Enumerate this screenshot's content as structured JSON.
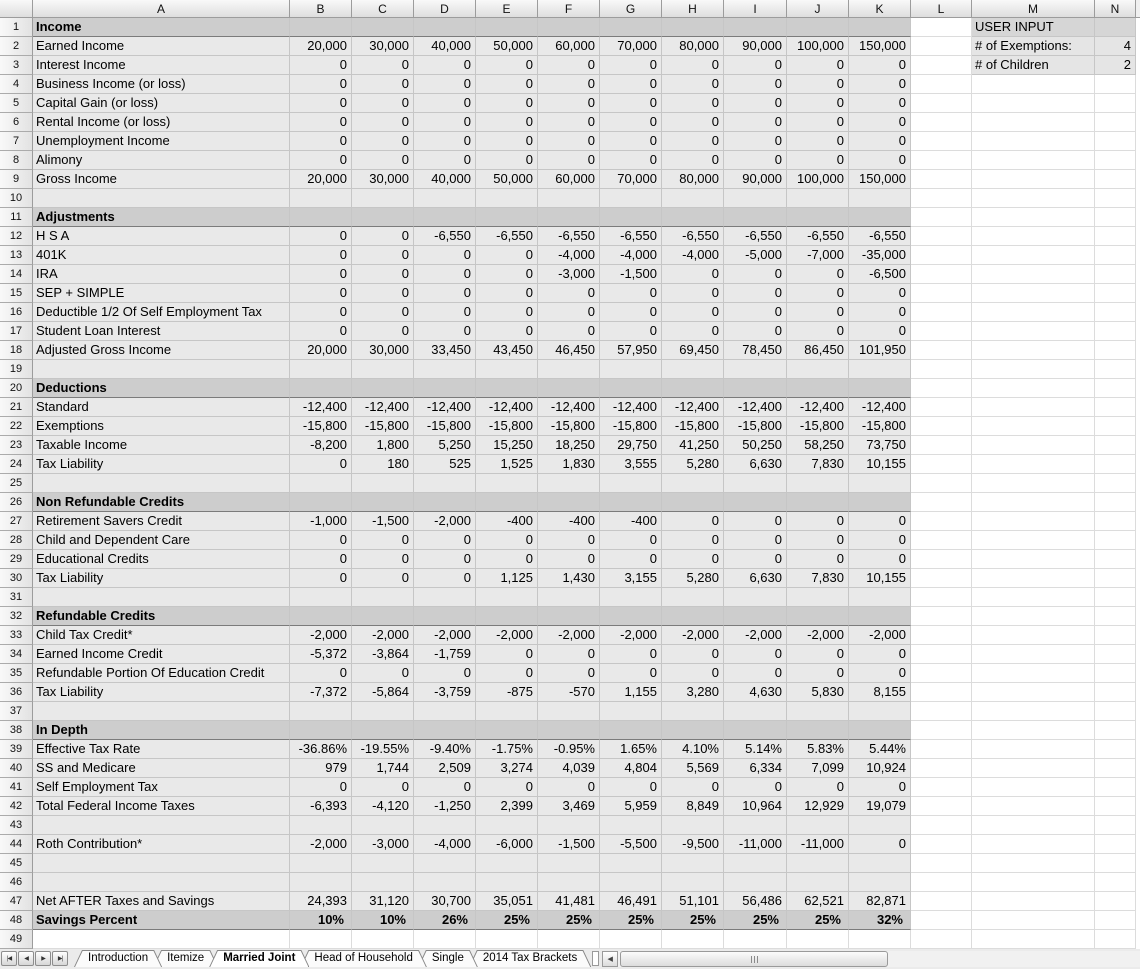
{
  "sheet": {
    "column_headers": [
      "A",
      "B",
      "C",
      "D",
      "E",
      "F",
      "G",
      "H",
      "I",
      "J",
      "K",
      "L",
      "M",
      "N"
    ],
    "rows": [
      {
        "row": 1,
        "type": "section",
        "label": "Income"
      },
      {
        "row": 2,
        "type": "data",
        "label": "Earned Income",
        "values": [
          "20,000",
          "30,000",
          "40,000",
          "50,000",
          "60,000",
          "70,000",
          "80,000",
          "90,000",
          "100,000",
          "150,000"
        ]
      },
      {
        "row": 3,
        "type": "data",
        "label": "Interest Income",
        "values": [
          "0",
          "0",
          "0",
          "0",
          "0",
          "0",
          "0",
          "0",
          "0",
          "0"
        ]
      },
      {
        "row": 4,
        "type": "data",
        "label": "Business Income (or loss)",
        "values": [
          "0",
          "0",
          "0",
          "0",
          "0",
          "0",
          "0",
          "0",
          "0",
          "0"
        ]
      },
      {
        "row": 5,
        "type": "data",
        "label": "Capital Gain (or loss)",
        "values": [
          "0",
          "0",
          "0",
          "0",
          "0",
          "0",
          "0",
          "0",
          "0",
          "0"
        ]
      },
      {
        "row": 6,
        "type": "data",
        "label": "Rental Income (or loss)",
        "values": [
          "0",
          "0",
          "0",
          "0",
          "0",
          "0",
          "0",
          "0",
          "0",
          "0"
        ]
      },
      {
        "row": 7,
        "type": "data",
        "label": "Unemployment Income",
        "values": [
          "0",
          "0",
          "0",
          "0",
          "0",
          "0",
          "0",
          "0",
          "0",
          "0"
        ]
      },
      {
        "row": 8,
        "type": "data",
        "label": "Alimony",
        "values": [
          "0",
          "0",
          "0",
          "0",
          "0",
          "0",
          "0",
          "0",
          "0",
          "0"
        ]
      },
      {
        "row": 9,
        "type": "data",
        "label": "Gross Income",
        "values": [
          "20,000",
          "30,000",
          "40,000",
          "50,000",
          "60,000",
          "70,000",
          "80,000",
          "90,000",
          "100,000",
          "150,000"
        ]
      },
      {
        "row": 10,
        "type": "blank"
      },
      {
        "row": 11,
        "type": "section",
        "label": "Adjustments"
      },
      {
        "row": 12,
        "type": "data",
        "label": "H S A",
        "values": [
          "0",
          "0",
          "-6,550",
          "-6,550",
          "-6,550",
          "-6,550",
          "-6,550",
          "-6,550",
          "-6,550",
          "-6,550"
        ]
      },
      {
        "row": 13,
        "type": "data",
        "label": "401K",
        "values": [
          "0",
          "0",
          "0",
          "0",
          "-4,000",
          "-4,000",
          "-4,000",
          "-5,000",
          "-7,000",
          "-35,000"
        ]
      },
      {
        "row": 14,
        "type": "data",
        "label": "IRA",
        "values": [
          "0",
          "0",
          "0",
          "0",
          "-3,000",
          "-1,500",
          "0",
          "0",
          "0",
          "-6,500"
        ]
      },
      {
        "row": 15,
        "type": "data",
        "label": "SEP + SIMPLE",
        "values": [
          "0",
          "0",
          "0",
          "0",
          "0",
          "0",
          "0",
          "0",
          "0",
          "0"
        ]
      },
      {
        "row": 16,
        "type": "data",
        "label": "Deductible 1/2 Of Self Employment Tax",
        "values": [
          "0",
          "0",
          "0",
          "0",
          "0",
          "0",
          "0",
          "0",
          "0",
          "0"
        ]
      },
      {
        "row": 17,
        "type": "data",
        "label": "Student Loan Interest",
        "values": [
          "0",
          "0",
          "0",
          "0",
          "0",
          "0",
          "0",
          "0",
          "0",
          "0"
        ]
      },
      {
        "row": 18,
        "type": "data",
        "label": "Adjusted Gross Income",
        "values": [
          "20,000",
          "30,000",
          "33,450",
          "43,450",
          "46,450",
          "57,950",
          "69,450",
          "78,450",
          "86,450",
          "101,950"
        ]
      },
      {
        "row": 19,
        "type": "blank"
      },
      {
        "row": 20,
        "type": "section",
        "label": "Deductions"
      },
      {
        "row": 21,
        "type": "data",
        "label": "Standard",
        "values": [
          "-12,400",
          "-12,400",
          "-12,400",
          "-12,400",
          "-12,400",
          "-12,400",
          "-12,400",
          "-12,400",
          "-12,400",
          "-12,400"
        ]
      },
      {
        "row": 22,
        "type": "data",
        "label": "Exemptions",
        "values": [
          "-15,800",
          "-15,800",
          "-15,800",
          "-15,800",
          "-15,800",
          "-15,800",
          "-15,800",
          "-15,800",
          "-15,800",
          "-15,800"
        ]
      },
      {
        "row": 23,
        "type": "data",
        "label": "Taxable Income",
        "values": [
          "-8,200",
          "1,800",
          "5,250",
          "15,250",
          "18,250",
          "29,750",
          "41,250",
          "50,250",
          "58,250",
          "73,750"
        ]
      },
      {
        "row": 24,
        "type": "data",
        "label": "Tax Liability",
        "values": [
          "0",
          "180",
          "525",
          "1,525",
          "1,830",
          "3,555",
          "5,280",
          "6,630",
          "7,830",
          "10,155"
        ]
      },
      {
        "row": 25,
        "type": "blank"
      },
      {
        "row": 26,
        "type": "section",
        "label": "Non Refundable Credits"
      },
      {
        "row": 27,
        "type": "data",
        "label": "Retirement Savers Credit",
        "values": [
          "-1,000",
          "-1,500",
          "-2,000",
          "-400",
          "-400",
          "-400",
          "0",
          "0",
          "0",
          "0"
        ]
      },
      {
        "row": 28,
        "type": "data",
        "label": "Child and Dependent Care",
        "values": [
          "0",
          "0",
          "0",
          "0",
          "0",
          "0",
          "0",
          "0",
          "0",
          "0"
        ]
      },
      {
        "row": 29,
        "type": "data",
        "label": "Educational Credits",
        "values": [
          "0",
          "0",
          "0",
          "0",
          "0",
          "0",
          "0",
          "0",
          "0",
          "0"
        ]
      },
      {
        "row": 30,
        "type": "data",
        "label": "Tax Liability",
        "values": [
          "0",
          "0",
          "0",
          "1,125",
          "1,430",
          "3,155",
          "5,280",
          "6,630",
          "7,830",
          "10,155"
        ]
      },
      {
        "row": 31,
        "type": "blank"
      },
      {
        "row": 32,
        "type": "section",
        "label": "Refundable Credits"
      },
      {
        "row": 33,
        "type": "data",
        "label": "Child Tax Credit*",
        "values": [
          "-2,000",
          "-2,000",
          "-2,000",
          "-2,000",
          "-2,000",
          "-2,000",
          "-2,000",
          "-2,000",
          "-2,000",
          "-2,000"
        ]
      },
      {
        "row": 34,
        "type": "data",
        "label": "Earned Income Credit",
        "values": [
          "-5,372",
          "-3,864",
          "-1,759",
          "0",
          "0",
          "0",
          "0",
          "0",
          "0",
          "0"
        ]
      },
      {
        "row": 35,
        "type": "data",
        "label": "Refundable Portion Of Education Credit",
        "values": [
          "0",
          "0",
          "0",
          "0",
          "0",
          "0",
          "0",
          "0",
          "0",
          "0"
        ]
      },
      {
        "row": 36,
        "type": "data",
        "label": "Tax Liability",
        "values": [
          "-7,372",
          "-5,864",
          "-3,759",
          "-875",
          "-570",
          "1,155",
          "3,280",
          "4,630",
          "5,830",
          "8,155"
        ]
      },
      {
        "row": 37,
        "type": "blank"
      },
      {
        "row": 38,
        "type": "section",
        "label": "In Depth"
      },
      {
        "row": 39,
        "type": "data",
        "label": "Effective Tax Rate",
        "values": [
          "-36.86%",
          "-19.55%",
          "-9.40%",
          "-1.75%",
          "-0.95%",
          "1.65%",
          "4.10%",
          "5.14%",
          "5.83%",
          "5.44%"
        ]
      },
      {
        "row": 40,
        "type": "data",
        "label": "SS and Medicare",
        "values": [
          "979",
          "1,744",
          "2,509",
          "3,274",
          "4,039",
          "4,804",
          "5,569",
          "6,334",
          "7,099",
          "10,924"
        ]
      },
      {
        "row": 41,
        "type": "data",
        "label": "Self Employment Tax",
        "values": [
          "0",
          "0",
          "0",
          "0",
          "0",
          "0",
          "0",
          "0",
          "0",
          "0"
        ]
      },
      {
        "row": 42,
        "type": "data",
        "label": "Total Federal Income Taxes",
        "values": [
          "-6,393",
          "-4,120",
          "-1,250",
          "2,399",
          "3,469",
          "5,959",
          "8,849",
          "10,964",
          "12,929",
          "19,079"
        ]
      },
      {
        "row": 43,
        "type": "blank"
      },
      {
        "row": 44,
        "type": "data",
        "label": "Roth Contribution*",
        "values": [
          "-2,000",
          "-3,000",
          "-4,000",
          "-6,000",
          "-1,500",
          "-5,500",
          "-9,500",
          "-11,000",
          "-11,000",
          "0"
        ]
      },
      {
        "row": 45,
        "type": "blank"
      },
      {
        "row": 46,
        "type": "blank"
      },
      {
        "row": 47,
        "type": "data",
        "label": "Net AFTER Taxes and Savings",
        "values": [
          "24,393",
          "31,120",
          "30,700",
          "35,051",
          "41,481",
          "46,491",
          "51,101",
          "56,486",
          "62,521",
          "82,871"
        ]
      },
      {
        "row": 48,
        "type": "total",
        "label": "Savings Percent",
        "values": [
          "10%",
          "10%",
          "26%",
          "25%",
          "25%",
          "25%",
          "25%",
          "25%",
          "25%",
          "32%"
        ]
      },
      {
        "row": 49,
        "type": "outside"
      }
    ],
    "user_input": {
      "title": "USER INPUT",
      "fields": [
        {
          "label": "# of Exemptions:",
          "value": "4"
        },
        {
          "label": "# of Children",
          "value": "2"
        }
      ]
    }
  },
  "tabbar": {
    "nav": [
      {
        "name": "first-sheet",
        "glyph": "|◀"
      },
      {
        "name": "previous-sheet",
        "glyph": "◀"
      },
      {
        "name": "next-sheet",
        "glyph": "▶"
      },
      {
        "name": "last-sheet",
        "glyph": "▶|"
      }
    ],
    "tabs": [
      {
        "label": "Introduction",
        "active": false
      },
      {
        "label": "Itemize",
        "active": false
      },
      {
        "label": "Married Joint",
        "active": true
      },
      {
        "label": "Head of Household",
        "active": false
      },
      {
        "label": "Single",
        "active": false
      },
      {
        "label": "2014 Tax Brackets",
        "active": false
      }
    ],
    "scroll_left_glyph": "◀"
  },
  "colors": {
    "cell_fill": "#e9e9e9",
    "section_fill": "#cdcdcd",
    "gridline": "#c6c6c6",
    "section_border": "#7b7b7b",
    "header_fill": "#e8e8e8"
  }
}
